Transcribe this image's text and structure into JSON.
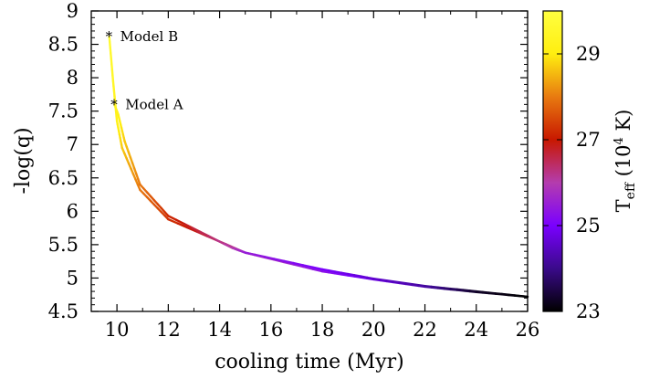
{
  "chart_data": {
    "type": "line",
    "title": "",
    "xlabel": "cooling time (Myr)",
    "ylabel": "-log(q)",
    "xlim": [
      9,
      26
    ],
    "ylim": [
      4.5,
      9
    ],
    "x_ticks": [
      10,
      12,
      14,
      16,
      18,
      20,
      22,
      24,
      26
    ],
    "y_ticks": [
      4.5,
      5,
      5.5,
      6,
      6.5,
      7,
      7.5,
      8,
      8.5,
      9
    ],
    "x_tick_labels": [
      "10",
      "12",
      "14",
      "16",
      "18",
      "20",
      "22",
      "24",
      "26"
    ],
    "y_tick_labels": [
      "4.5",
      "5",
      "5.5",
      "6",
      "6.5",
      "7",
      "7.5",
      "8",
      "8.5",
      "9"
    ],
    "color_by": "Teff",
    "colorbar": {
      "label_main": "T",
      "label_sub": "eff",
      "label_rest1": " (10",
      "label_sup": "4",
      "label_rest2": " K)",
      "range": [
        23,
        30
      ],
      "ticks": [
        23,
        25,
        27,
        29
      ],
      "tick_labels": [
        "23",
        "25",
        "27",
        "29"
      ],
      "colors": [
        "#000000",
        "#3a0a8a",
        "#7a00ff",
        "#b43cae",
        "#c81800",
        "#e87a10",
        "#ffee10",
        "#ffff40"
      ]
    },
    "series": [
      {
        "x": [
          9.7,
          9.85,
          10.0,
          10.2,
          10.9,
          12.0,
          15.0,
          18.0,
          20.0,
          22.0,
          24.0,
          26.0
        ],
        "y": [
          8.62,
          7.95,
          7.35,
          6.95,
          6.32,
          5.88,
          5.38,
          5.1,
          4.98,
          4.87,
          4.79,
          4.72
        ],
        "teff": [
          29.7,
          29.5,
          29.2,
          28.7,
          28.0,
          27.3,
          26.0,
          25.3,
          24.8,
          24.3,
          23.3,
          23.0
        ]
      },
      {
        "x": [
          9.9,
          10.05,
          10.3,
          10.9,
          12.0,
          14.5,
          15.0,
          18.0,
          20.0,
          22.0,
          24.0,
          26.0
        ],
        "y": [
          7.6,
          7.45,
          7.05,
          6.4,
          5.93,
          5.45,
          5.38,
          5.13,
          4.99,
          4.88,
          4.8,
          4.72
        ],
        "teff": [
          29.5,
          29.2,
          28.7,
          28.0,
          27.2,
          26.0,
          25.5,
          25.0,
          24.6,
          24.2,
          23.3,
          23.0
        ]
      }
    ],
    "annotations": [
      {
        "marker": "*",
        "label": "Model B",
        "x": 9.7,
        "y": 8.62
      },
      {
        "marker": "*",
        "label": "Model A",
        "x": 9.9,
        "y": 7.6
      }
    ]
  }
}
